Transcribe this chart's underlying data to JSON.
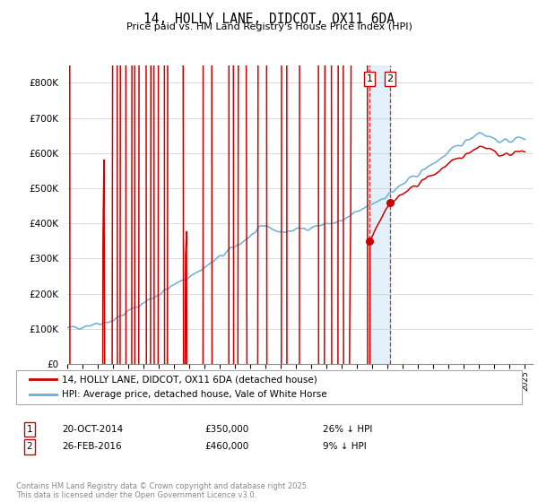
{
  "title": "14, HOLLY LANE, DIDCOT, OX11 6DA",
  "subtitle": "Price paid vs. HM Land Registry's House Price Index (HPI)",
  "legend_line1": "14, HOLLY LANE, DIDCOT, OX11 6DA (detached house)",
  "legend_line2": "HPI: Average price, detached house, Vale of White Horse",
  "transaction1_date": "20-OCT-2014",
  "transaction1_price": 350000,
  "transaction1_pricefmt": "£350,000",
  "transaction1_label": "26% ↓ HPI",
  "transaction1_year": 2014.8,
  "transaction2_date": "26-FEB-2016",
  "transaction2_price": 460000,
  "transaction2_pricefmt": "£460,000",
  "transaction2_label": "9% ↓ HPI",
  "transaction2_year": 2016.15,
  "footer": "Contains HM Land Registry data © Crown copyright and database right 2025.\nThis data is licensed under the Open Government Licence v3.0.",
  "hpi_color": "#6baed6",
  "price_color": "#cc0000",
  "vline_color": "#cc0000",
  "span_color": "#d0e8f5",
  "ylim_max": 850000,
  "ylim_min": 0,
  "xlim_min": 1995,
  "xlim_max": 2025.5,
  "background": "#ffffff"
}
